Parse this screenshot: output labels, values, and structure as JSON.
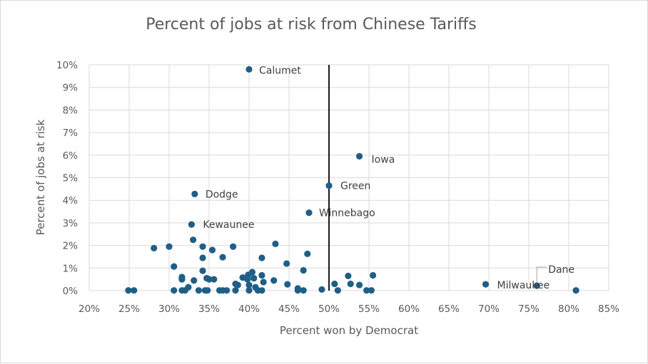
{
  "chart_data": {
    "type": "scatter",
    "title": "Percent of jobs at risk from Chinese Tariffs",
    "xlabel": "Percent won by Democrat",
    "ylabel": "Percent of jobs at risk",
    "xlim": [
      0.2,
      0.85
    ],
    "ylim": [
      0,
      0.1
    ],
    "x_ticks": [
      "20%",
      "25%",
      "30%",
      "35%",
      "40%",
      "45%",
      "50%",
      "55%",
      "60%",
      "65%",
      "70%",
      "75%",
      "80%",
      "85%"
    ],
    "y_ticks": [
      "0%",
      "1%",
      "2%",
      "3%",
      "4%",
      "5%",
      "6%",
      "7%",
      "8%",
      "9%",
      "10%"
    ],
    "grid": true,
    "legend": "none",
    "point_color": "#1f5f86",
    "reference_line": {
      "x": 0.5
    },
    "labeled_points": [
      {
        "label": "Calumet",
        "x": 0.4,
        "y": 0.098
      },
      {
        "label": "Iowa",
        "x": 0.538,
        "y": 0.0595
      },
      {
        "label": "Green",
        "x": 0.5,
        "y": 0.0465
      },
      {
        "label": "Dodge",
        "x": 0.332,
        "y": 0.0428
      },
      {
        "label": "Winnebago",
        "x": 0.475,
        "y": 0.0345
      },
      {
        "label": "Kewaunee",
        "x": 0.328,
        "y": 0.0293
      },
      {
        "label": "Milwaukee",
        "x": 0.696,
        "y": 0.0028
      },
      {
        "label": "Dane",
        "x": 0.76,
        "y": 0.0022
      }
    ],
    "points": [
      [
        0.249,
        0.0001
      ],
      [
        0.256,
        0.0001
      ],
      [
        0.281,
        0.0188
      ],
      [
        0.3,
        0.0195
      ],
      [
        0.306,
        0.0107
      ],
      [
        0.306,
        0.0001
      ],
      [
        0.316,
        0.006
      ],
      [
        0.316,
        0.005
      ],
      [
        0.316,
        0.0001
      ],
      [
        0.32,
        0.0001
      ],
      [
        0.324,
        0.0015
      ],
      [
        0.33,
        0.0225
      ],
      [
        0.331,
        0.0045
      ],
      [
        0.337,
        0.0001
      ],
      [
        0.342,
        0.0195
      ],
      [
        0.342,
        0.0145
      ],
      [
        0.342,
        0.0088
      ],
      [
        0.345,
        0.0001
      ],
      [
        0.347,
        0.0055
      ],
      [
        0.348,
        0.0001
      ],
      [
        0.35,
        0.005
      ],
      [
        0.354,
        0.018
      ],
      [
        0.356,
        0.005
      ],
      [
        0.363,
        0.0001
      ],
      [
        0.367,
        0.0148
      ],
      [
        0.367,
        0.0001
      ],
      [
        0.372,
        0.0001
      ],
      [
        0.38,
        0.0195
      ],
      [
        0.383,
        0.003
      ],
      [
        0.383,
        0.0001
      ],
      [
        0.386,
        0.0025
      ],
      [
        0.392,
        0.0058
      ],
      [
        0.398,
        0.005
      ],
      [
        0.399,
        0.007
      ],
      [
        0.4,
        0.0025
      ],
      [
        0.4,
        0.0001
      ],
      [
        0.404,
        0.0082
      ],
      [
        0.406,
        0.0055
      ],
      [
        0.408,
        0.0015
      ],
      [
        0.411,
        0.0001
      ],
      [
        0.416,
        0.0145
      ],
      [
        0.416,
        0.0068
      ],
      [
        0.416,
        0.0001
      ],
      [
        0.418,
        0.0038
      ],
      [
        0.431,
        0.0045
      ],
      [
        0.433,
        0.0207
      ],
      [
        0.447,
        0.012
      ],
      [
        0.448,
        0.0028
      ],
      [
        0.461,
        0.001
      ],
      [
        0.461,
        0.0001
      ],
      [
        0.468,
        0.009
      ],
      [
        0.468,
        0.0001
      ],
      [
        0.473,
        0.0163
      ],
      [
        0.491,
        0.0005
      ],
      [
        0.507,
        0.003
      ],
      [
        0.511,
        0.0001
      ],
      [
        0.524,
        0.0065
      ],
      [
        0.527,
        0.003
      ],
      [
        0.538,
        0.0025
      ],
      [
        0.547,
        0.0001
      ],
      [
        0.553,
        0.0001
      ],
      [
        0.555,
        0.0068
      ],
      [
        0.809,
        0.0001
      ]
    ]
  }
}
